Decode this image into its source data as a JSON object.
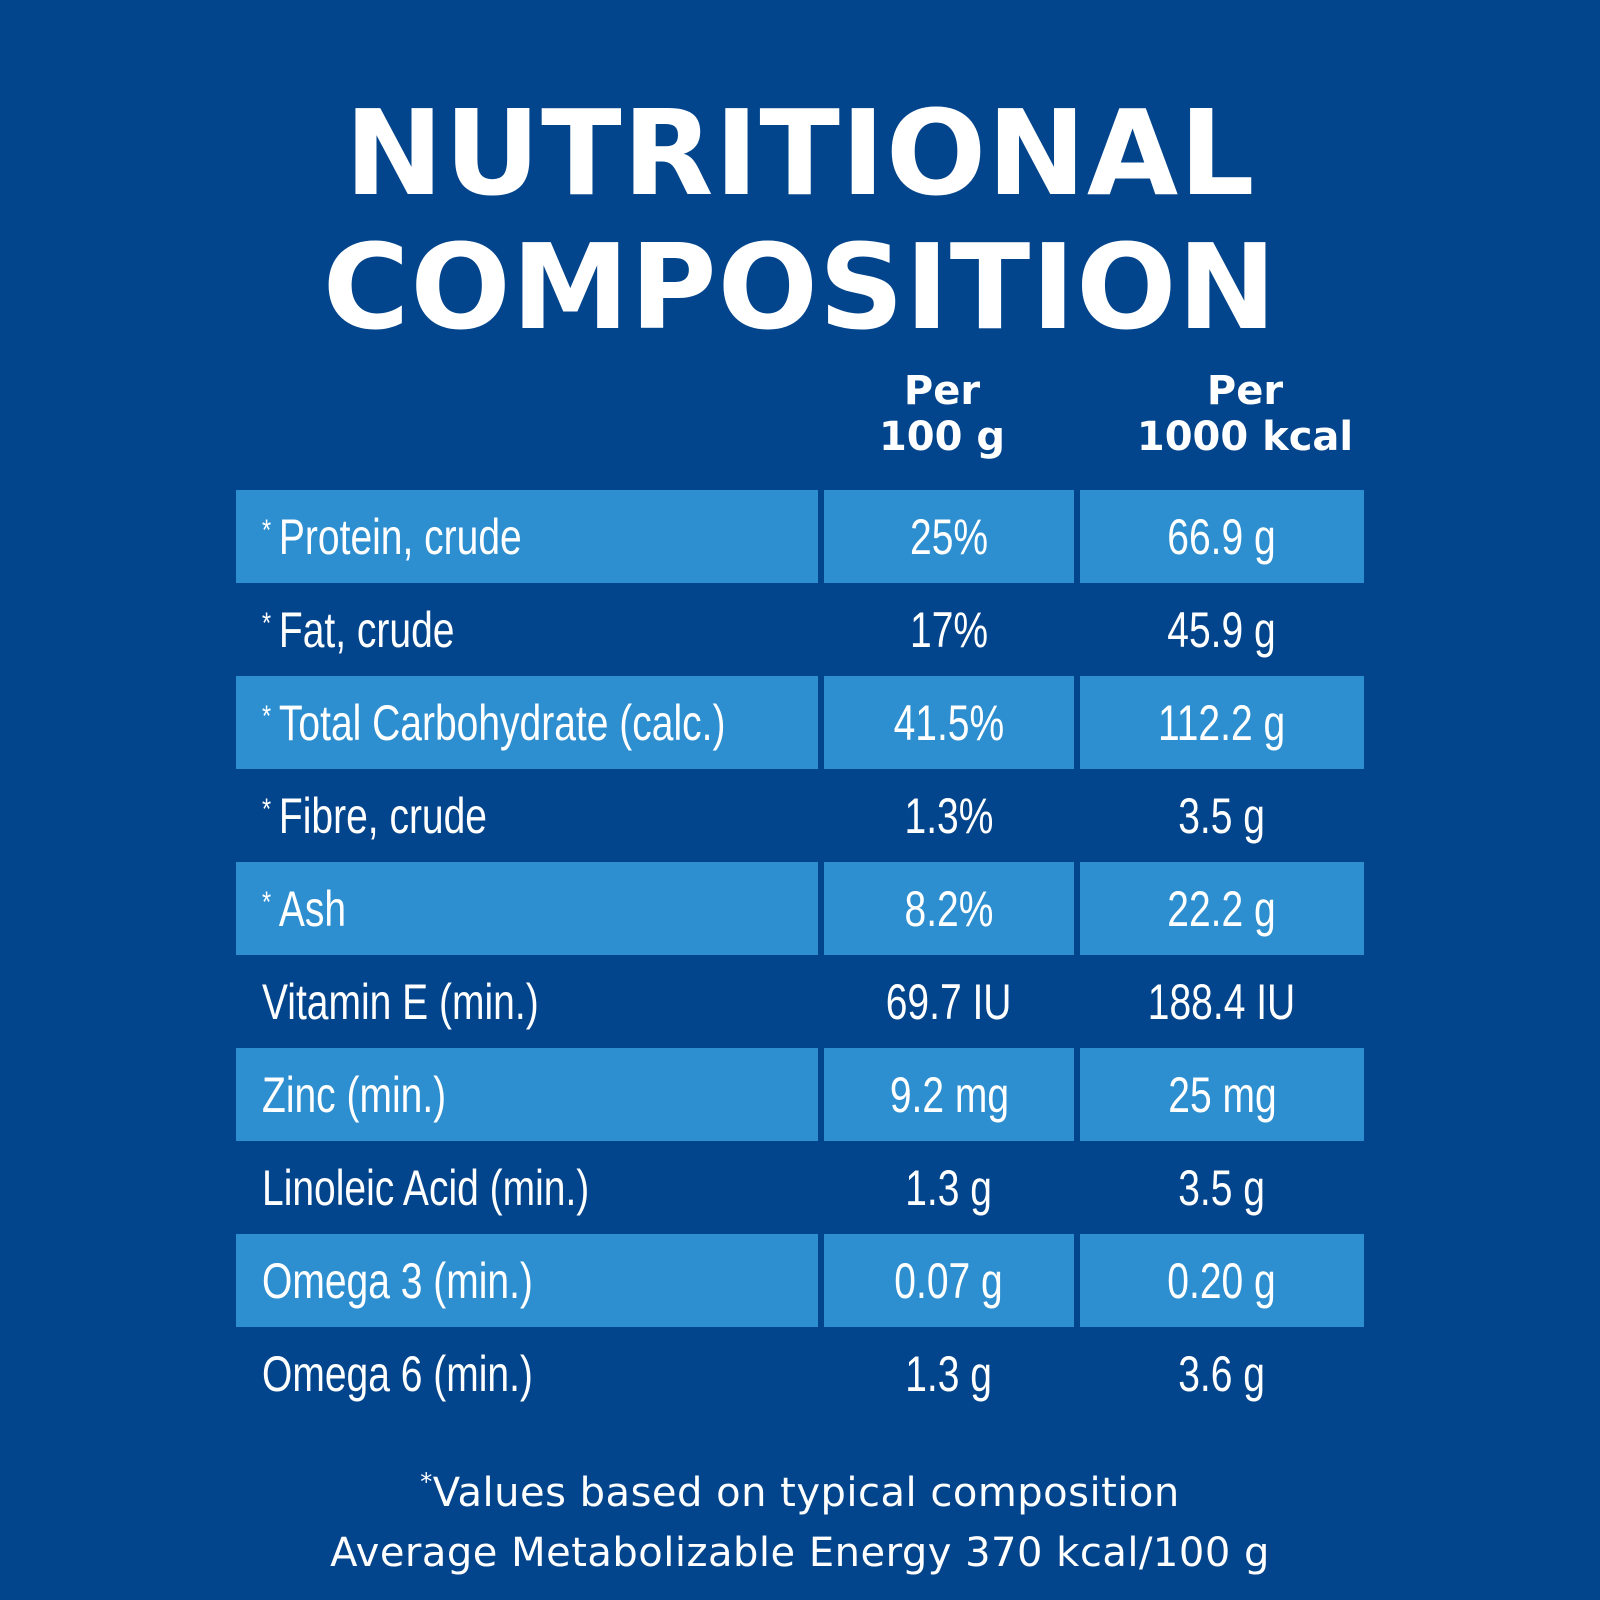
{
  "title": {
    "line1": "NUTRITIONAL",
    "line2": "COMPOSITION"
  },
  "columns": {
    "per_100g": {
      "line1": "Per",
      "line2": "100 g"
    },
    "per_1000kcal": {
      "line1": "Per",
      "line2": "1000 kcal"
    }
  },
  "rows": [
    {
      "star": "*",
      "name": "Protein, crude",
      "per_100g": "25%",
      "per_1000kcal": "66.9 g"
    },
    {
      "star": "*",
      "name": "Fat, crude",
      "per_100g": "17%",
      "per_1000kcal": "45.9 g"
    },
    {
      "star": "*",
      "name": "Total Carbohydrate (calc.)",
      "per_100g": "41.5%",
      "per_1000kcal": "112.2 g"
    },
    {
      "star": "*",
      "name": "Fibre, crude",
      "per_100g": "1.3%",
      "per_1000kcal": "3.5 g"
    },
    {
      "star": "*",
      "name": "Ash",
      "per_100g": "8.2%",
      "per_1000kcal": "22.2 g"
    },
    {
      "star": "",
      "name": "Vitamin E (min.)",
      "per_100g": "69.7 IU",
      "per_1000kcal": "188.4 IU"
    },
    {
      "star": "",
      "name": "Zinc (min.)",
      "per_100g": "9.2 mg",
      "per_1000kcal": "25 mg"
    },
    {
      "star": "",
      "name": "Linoleic Acid (min.)",
      "per_100g": "1.3 g",
      "per_1000kcal": "3.5 g"
    },
    {
      "star": "",
      "name": "Omega 3 (min.)",
      "per_100g": "0.07 g",
      "per_1000kcal": "0.20 g"
    },
    {
      "star": "",
      "name": "Omega 6 (min.)",
      "per_100g": "1.3 g",
      "per_1000kcal": "3.6 g"
    }
  ],
  "footnote": {
    "mark": "*",
    "line1": "Values based on typical composition",
    "line2": "Average Metabolizable Energy 370 kcal/100 g"
  },
  "colors": {
    "background": "#03458c",
    "row_shade": "#2e8fd0",
    "text": "#ffffff"
  }
}
